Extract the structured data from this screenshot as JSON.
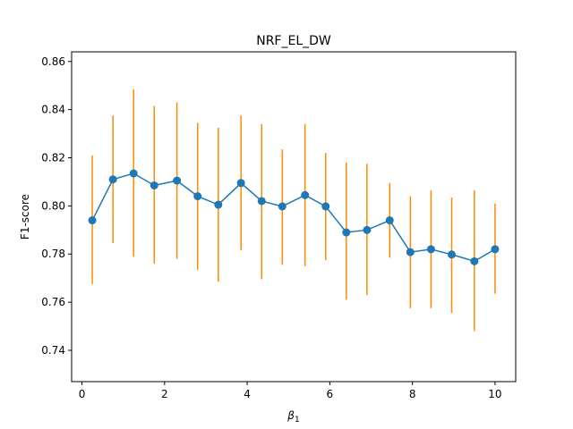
{
  "chart_data": {
    "type": "line",
    "title": "NRF_EL_DW",
    "xlabel_base": "β",
    "xlabel_sub": "1",
    "ylabel": "F1-score",
    "xlim": [
      -0.25,
      10.5
    ],
    "ylim": [
      0.727,
      0.864
    ],
    "x_ticks": [
      0,
      2,
      4,
      6,
      8,
      10
    ],
    "x_tick_labels": [
      "0",
      "2",
      "4",
      "6",
      "8",
      "10"
    ],
    "y_ticks": [
      0.74,
      0.76,
      0.78,
      0.8,
      0.82,
      0.84,
      0.86
    ],
    "y_tick_labels": [
      "0.74",
      "0.76",
      "0.78",
      "0.80",
      "0.82",
      "0.84",
      "0.86"
    ],
    "grid": false,
    "legend": "none",
    "colors": {
      "line": "#1f77b4",
      "errorbar": "#ff8c00"
    },
    "series": [
      {
        "x": [
          0.25,
          0.75,
          1.25,
          1.75,
          2.3,
          2.8,
          3.3,
          3.85,
          4.35,
          4.85,
          5.4,
          5.9,
          6.4,
          6.9,
          7.45,
          7.95,
          8.45,
          8.95,
          9.5,
          10.0
        ],
        "y": [
          0.794,
          0.811,
          0.8135,
          0.8085,
          0.8105,
          0.804,
          0.8005,
          0.8095,
          0.802,
          0.7998,
          0.8045,
          0.7998,
          0.789,
          0.79,
          0.794,
          0.7808,
          0.782,
          0.7798,
          0.777,
          0.782
        ],
        "err_low": [
          0.7675,
          0.7845,
          0.779,
          0.776,
          0.778,
          0.7735,
          0.7685,
          0.7815,
          0.7695,
          0.7755,
          0.775,
          0.7775,
          0.761,
          0.763,
          0.7785,
          0.7575,
          0.7575,
          0.7555,
          0.748,
          0.7635
        ],
        "err_high": [
          0.821,
          0.8375,
          0.8485,
          0.8415,
          0.843,
          0.8345,
          0.8325,
          0.8375,
          0.834,
          0.8235,
          0.834,
          0.822,
          0.818,
          0.8175,
          0.8095,
          0.804,
          0.8065,
          0.8035,
          0.8065,
          0.801
        ]
      }
    ]
  }
}
